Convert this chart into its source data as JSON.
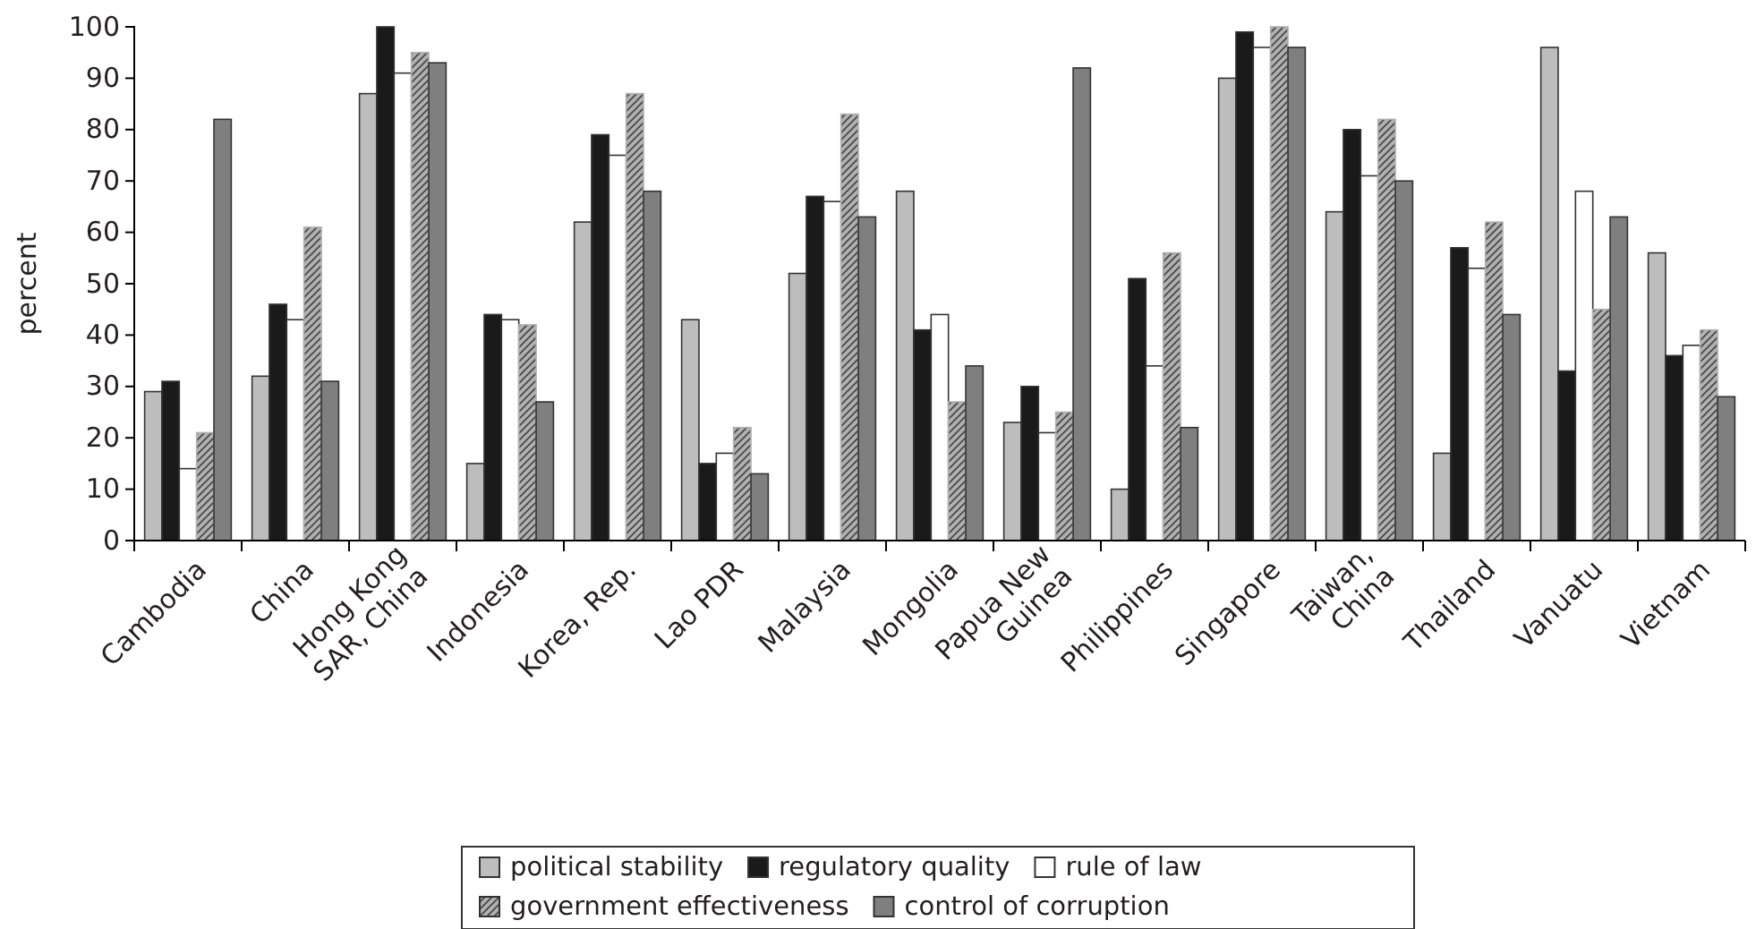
{
  "chart_data": {
    "type": "bar",
    "ylabel": "percent",
    "categories": [
      "Cambodia",
      "China",
      "Hong Kong SAR, China",
      "Indonesia",
      "Korea, Rep.",
      "Lao PDR",
      "Malaysia",
      "Mongolia",
      "Papua New Guinea",
      "Philippines",
      "Singapore",
      "Taiwan, China",
      "Thailand",
      "Vanuatu",
      "Vietnam"
    ],
    "series": [
      {
        "name": "political stability",
        "color": "#bdbdbd",
        "values": [
          29,
          32,
          87,
          15,
          62,
          43,
          52,
          68,
          23,
          10,
          90,
          64,
          17,
          96,
          56
        ]
      },
      {
        "name": "regulatory quality",
        "color": "#1a1a1a",
        "values": [
          31,
          46,
          100,
          44,
          79,
          15,
          67,
          41,
          30,
          51,
          99,
          80,
          57,
          33,
          36
        ]
      },
      {
        "name": "rule of law",
        "color": "#ffffff",
        "values": [
          14,
          43,
          91,
          43,
          75,
          17,
          66,
          44,
          21,
          34,
          96,
          71,
          53,
          68,
          38
        ]
      },
      {
        "name": "government effectiveness",
        "color": "#b0b0b0",
        "values": [
          21,
          61,
          95,
          42,
          87,
          22,
          83,
          27,
          25,
          56,
          100,
          82,
          62,
          45,
          41
        ]
      },
      {
        "name": "control of corruption",
        "color": "#7f7f7f",
        "values": [
          82,
          31,
          93,
          27,
          68,
          13,
          63,
          34,
          92,
          22,
          96,
          70,
          44,
          63,
          28
        ]
      }
    ],
    "ylim": [
      0,
      100
    ],
    "yticks": [
      0,
      10,
      20,
      30,
      40,
      50,
      60,
      70,
      80,
      90,
      100
    ],
    "grid": false,
    "legend": "bottom"
  }
}
